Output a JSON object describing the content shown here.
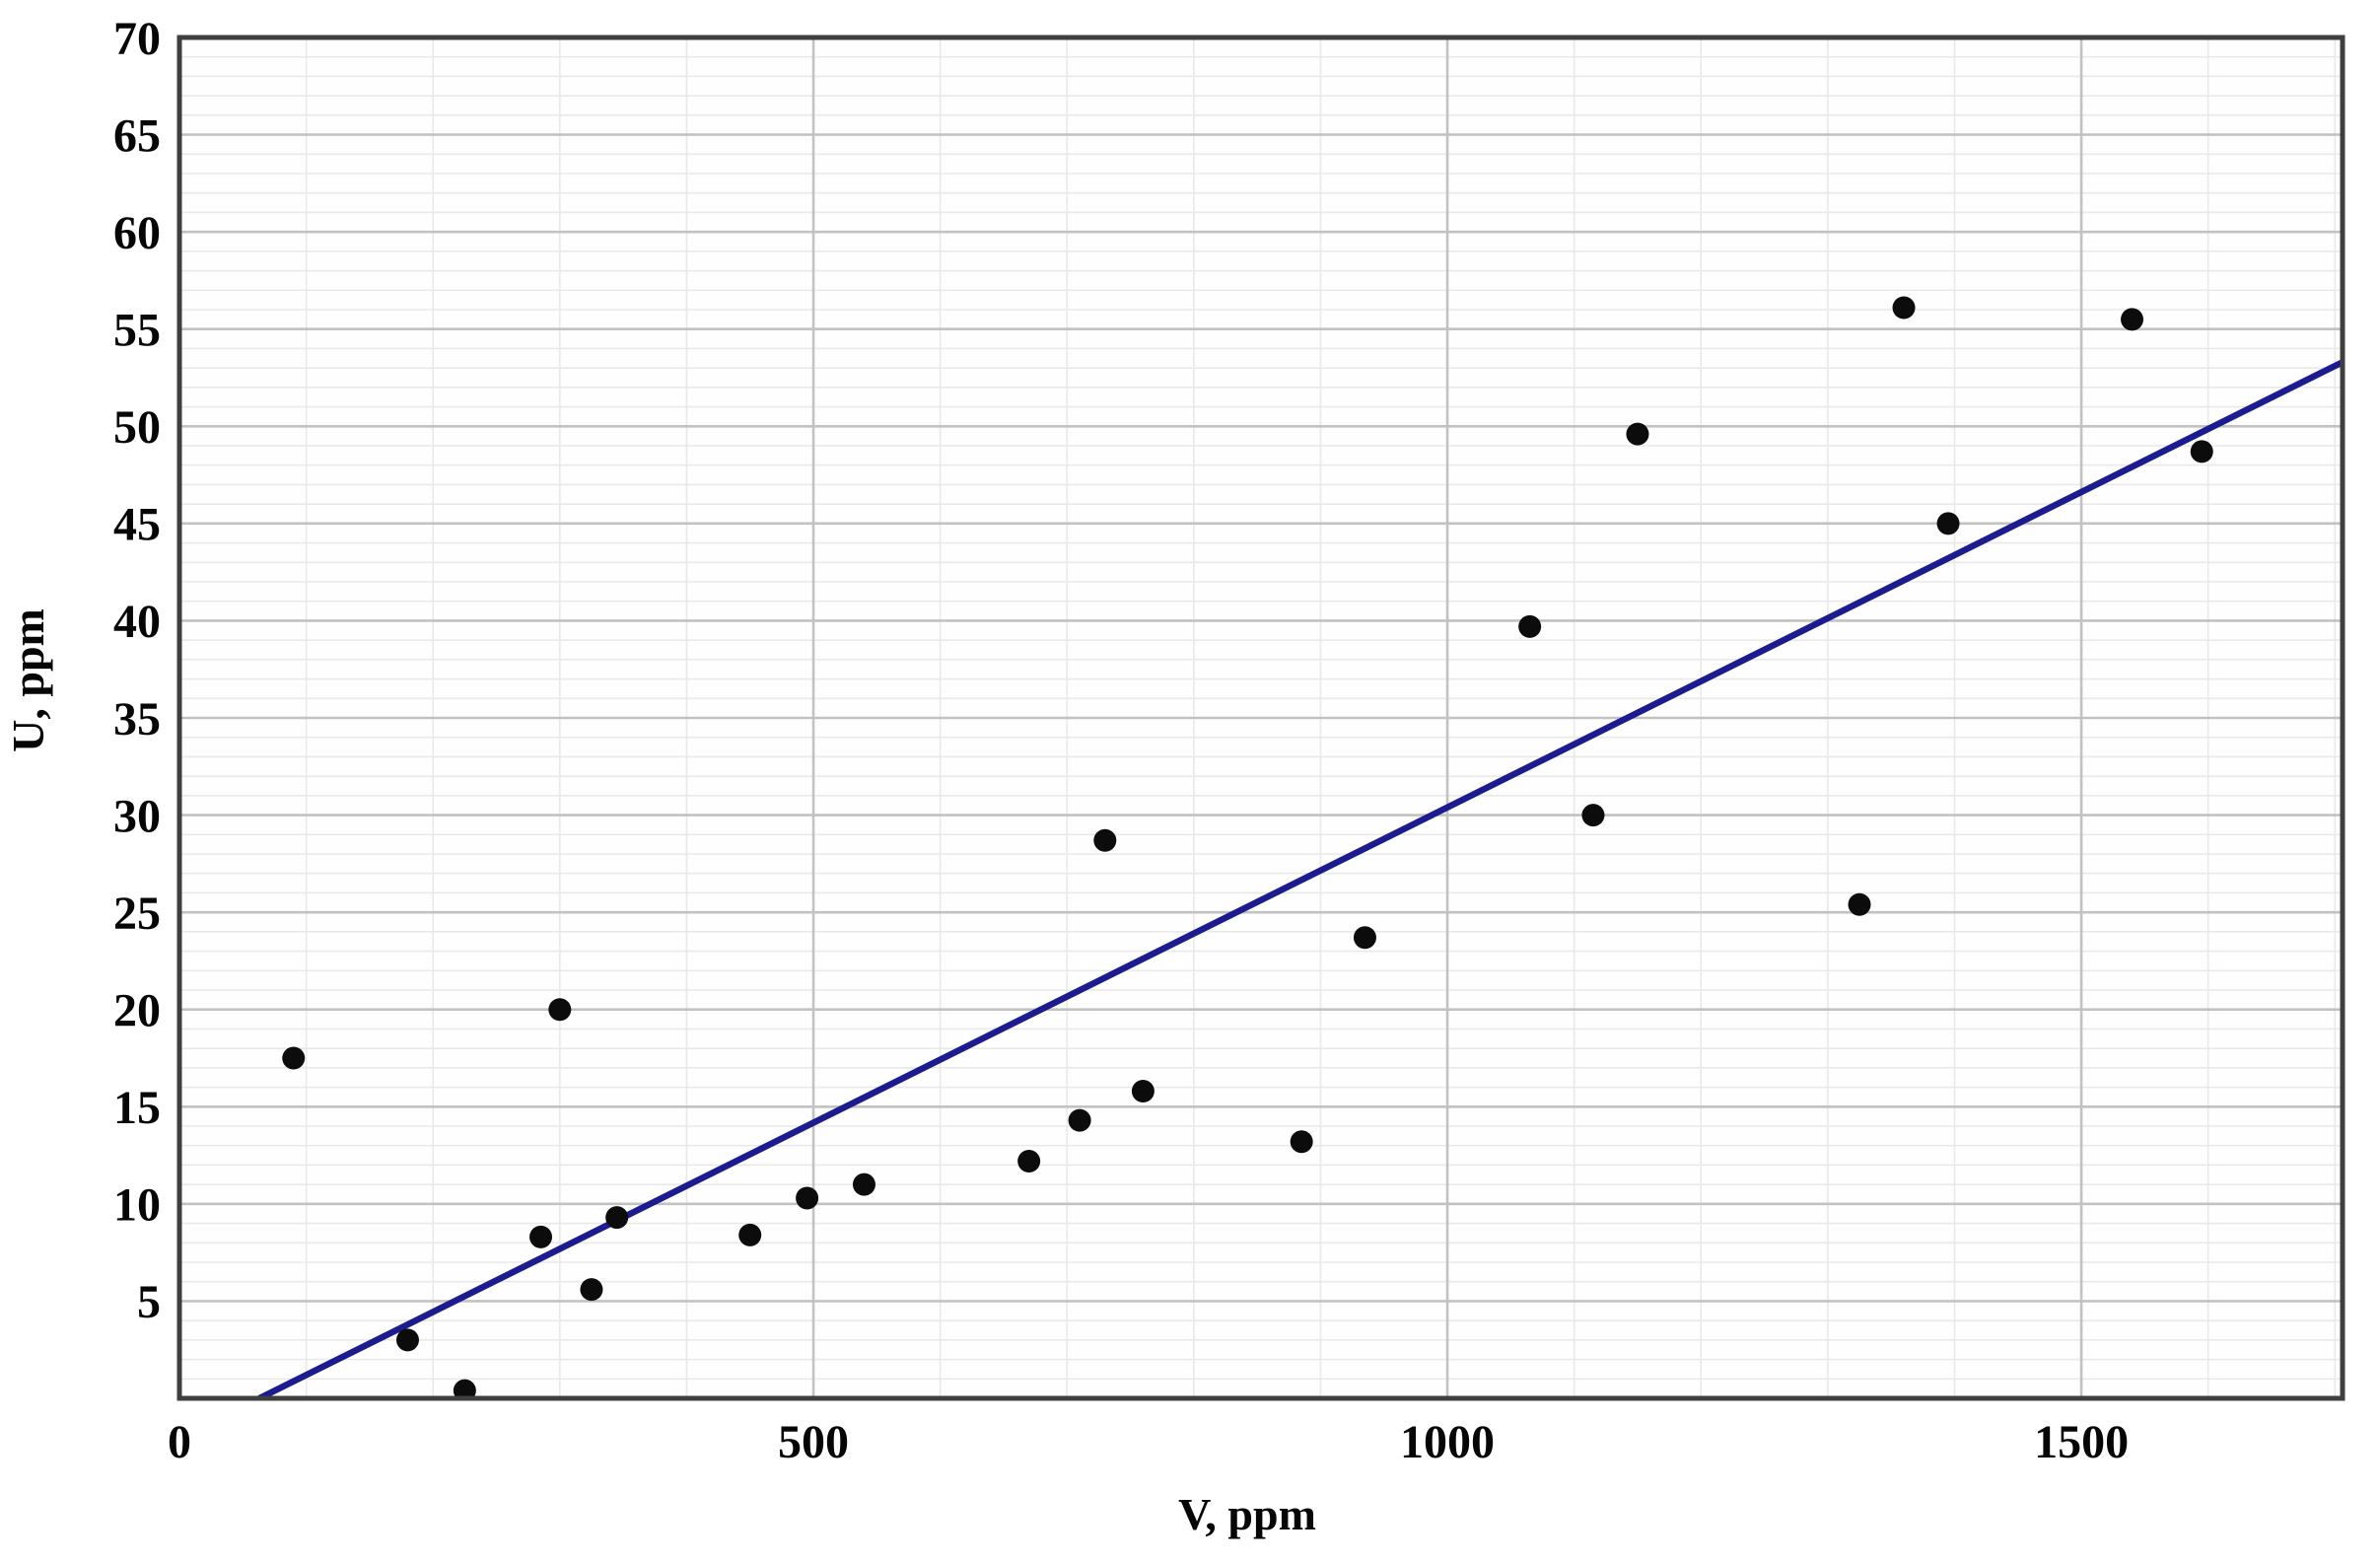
{
  "chart_data": {
    "type": "scatter",
    "title": "",
    "xlabel": "V, ppm",
    "ylabel": "U, ppm",
    "xlim": [
      0,
      1706
    ],
    "ylim": [
      0,
      70
    ],
    "grid": "on",
    "legend": "none",
    "x_major_ticks": [
      0,
      500,
      1000,
      1500
    ],
    "x_minor_step": 100,
    "y_major_ticks": [
      5,
      10,
      15,
      20,
      25,
      30,
      35,
      40,
      45,
      50,
      55,
      60,
      65,
      70
    ],
    "y_minor_step": 1,
    "points": [
      [
        90,
        17.5
      ],
      [
        180,
        3.0
      ],
      [
        225,
        0.4
      ],
      [
        285,
        8.3
      ],
      [
        300,
        20.0
      ],
      [
        325,
        5.6
      ],
      [
        345,
        9.3
      ],
      [
        450,
        8.4
      ],
      [
        495,
        10.3
      ],
      [
        540,
        11.0
      ],
      [
        670,
        12.2
      ],
      [
        710,
        14.3
      ],
      [
        730,
        28.7
      ],
      [
        760,
        15.8
      ],
      [
        885,
        13.2
      ],
      [
        935,
        23.7
      ],
      [
        1065,
        39.7
      ],
      [
        1115,
        30.0
      ],
      [
        1150,
        49.6
      ],
      [
        1325,
        25.4
      ],
      [
        1360,
        56.1
      ],
      [
        1395,
        45.0
      ],
      [
        1540,
        55.5
      ],
      [
        1595,
        48.7
      ]
    ],
    "trendline": {
      "x1": 63,
      "y1": 0,
      "x2": 1706,
      "y2": 53.3
    },
    "colors": {
      "point": "#0c0c0c",
      "trend": "#1c1c8f",
      "grid_minor": "#e9e9e9",
      "grid_major": "#c2c2c2",
      "border": "#3f3f3f",
      "plot_bg": "#fefefe",
      "text": "#060606"
    },
    "style": {
      "point_radius": 11.5,
      "trend_width": 6.5,
      "border_width": 5,
      "grid_minor_width": 1.6,
      "grid_major_width": 2.6
    }
  }
}
